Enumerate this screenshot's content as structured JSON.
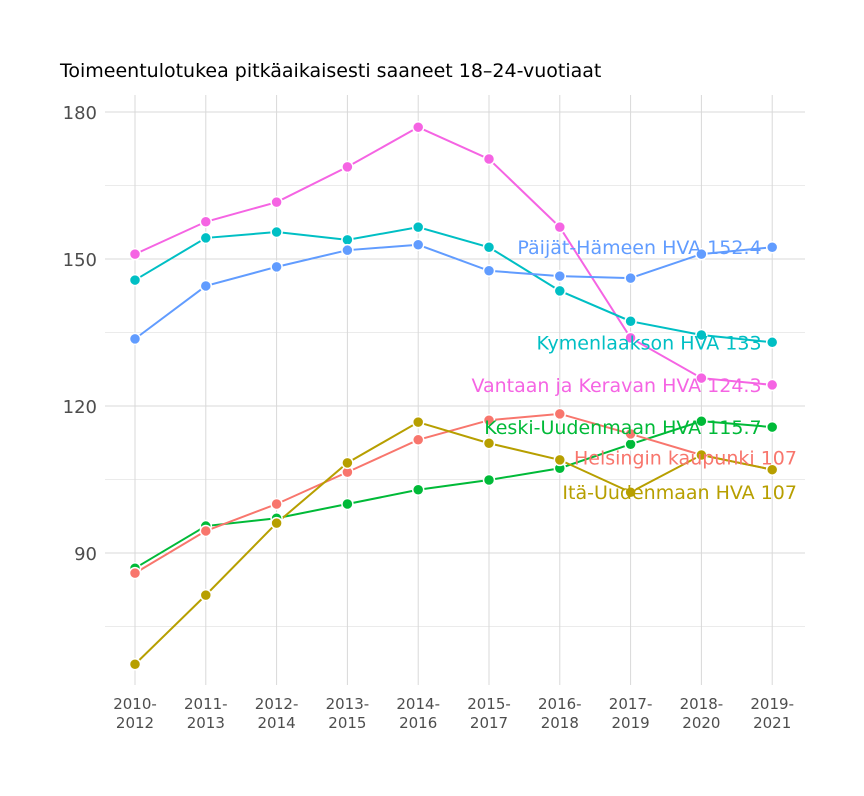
{
  "chart_data": {
    "type": "line",
    "title": "Toimeentulotukea pitkäaikaisesti saaneet 18–24-vuotiaat",
    "xlabel": "",
    "ylabel": "",
    "ylim": [
      62,
      193
    ],
    "yticks": [
      90,
      120,
      150,
      180
    ],
    "ytick_labels": [
      "90",
      "120",
      "150",
      "180"
    ],
    "minor_yticks": [
      75,
      105,
      135,
      165
    ],
    "grid": true,
    "legend": "direct-labels-right",
    "categories": [
      [
        "2010-",
        "2012"
      ],
      [
        "2011-",
        "2013"
      ],
      [
        "2012-",
        "2014"
      ],
      [
        "2013-",
        "2015"
      ],
      [
        "2014-",
        "2016"
      ],
      [
        "2015-",
        "2017"
      ],
      [
        "2016-",
        "2018"
      ],
      [
        "2017-",
        "2019"
      ],
      [
        "2018-",
        "2020"
      ],
      [
        "2019-",
        "2021"
      ]
    ],
    "series": [
      {
        "name": "Vantaan ja Keravan HVA",
        "label": "Vantaan ja Keravan HVA 124.3",
        "color": "#F564E3",
        "label_anchor": "end",
        "label_y": 124.3,
        "label_x": 8.85,
        "values": [
          151.0,
          157.6,
          161.6,
          168.8,
          176.9,
          170.4,
          156.5,
          133.9,
          125.7,
          124.3
        ]
      },
      {
        "name": "Kymenlaakson HVA",
        "label": "Kymenlaakson HVA 133",
        "color": "#00BFC4",
        "label_anchor": "end",
        "label_y": 133,
        "label_x": 8.85,
        "values": [
          145.7,
          154.3,
          155.5,
          153.9,
          156.5,
          152.4,
          143.5,
          137.3,
          134.5,
          133.0
        ]
      },
      {
        "name": "Päijät-Hämeen HVA",
        "label": "Päijät-Hämeen HVA 152.4",
        "color": "#619CFF",
        "label_anchor": "end",
        "label_y": 152.4,
        "label_x": 8.85,
        "values": [
          133.7,
          144.5,
          148.4,
          151.8,
          152.9,
          147.6,
          146.5,
          146.1,
          151.0,
          152.4
        ]
      },
      {
        "name": "Keski-Uudenmaan HVA",
        "label": "Keski-Uudenmaan HVA 115.7",
        "color": "#00BA38",
        "label_anchor": "end",
        "label_y": 115.7,
        "label_x": 8.85,
        "values": [
          86.9,
          95.5,
          97.1,
          100.0,
          102.9,
          104.9,
          107.3,
          112.2,
          116.9,
          115.7
        ]
      },
      {
        "name": "Helsingin kaupunki",
        "label": "Helsingin kaupunki 107",
        "color": "#F8766D",
        "label_anchor": "end",
        "label_y": 109.5,
        "label_x": 9.35,
        "values": [
          85.9,
          94.5,
          100.0,
          106.5,
          113.1,
          117.1,
          118.4,
          114.3,
          110.0,
          107.0
        ]
      },
      {
        "name": "Itä-Uudenmaan HVA",
        "label": "Itä-Uudenmaan HVA 107",
        "color": "#B79F00",
        "label_anchor": "end",
        "label_y": 102.5,
        "label_x": 9.35,
        "values": [
          67.3,
          81.4,
          96.1,
          108.4,
          116.7,
          112.4,
          109.0,
          102.4,
          110.0,
          107.0
        ]
      }
    ]
  }
}
